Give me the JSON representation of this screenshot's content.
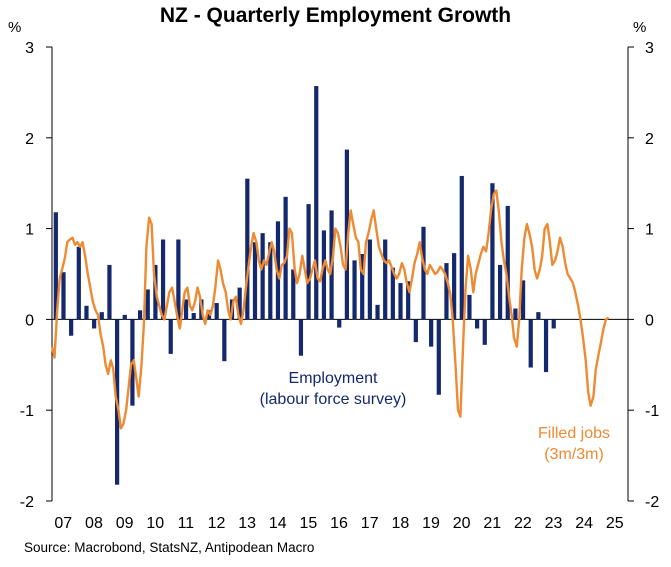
{
  "chart_data": {
    "type": "bar+line",
    "title": "NZ - Quarterly Employment Growth",
    "source": "Source: Macrobond, StatsNZ, Antipodean Macro",
    "y_unit_left": "%",
    "y_unit_right": "%",
    "ylim": [
      -2,
      3
    ],
    "y_ticks": [
      "3",
      "2",
      "1",
      "0",
      "-1",
      "-2"
    ],
    "x_tick_labels": [
      "07",
      "08",
      "09",
      "10",
      "11",
      "12",
      "13",
      "14",
      "15",
      "16",
      "17",
      "18",
      "19",
      "20",
      "21",
      "22",
      "23",
      "24",
      "25"
    ],
    "x_range_years": [
      2007,
      2025.8
    ],
    "grid": false,
    "colors": {
      "employment": "#14286e",
      "filled_jobs": "#ee8a32",
      "axis": "#000000",
      "text_navy": "#14286e",
      "text_orange": "#ee8a32"
    },
    "series": [
      {
        "name": "Employment",
        "type": "bar",
        "x_start": 2007.125,
        "step": 0.25,
        "values": [
          1.18,
          0.52,
          -0.18,
          0.8,
          0.15,
          -0.1,
          0.08,
          0.6,
          -1.82,
          0.05,
          -0.95,
          0.1,
          0.33,
          0.6,
          0.88,
          -0.38,
          0.88,
          0.22,
          0.07,
          0.22,
          0.1,
          0.18,
          -0.46,
          0.22,
          0.35,
          1.55,
          0.85,
          0.95,
          0.85,
          1.08,
          1.35,
          0.55,
          -0.4,
          1.27,
          2.57,
          0.98,
          1.2,
          -0.09,
          1.87,
          0.65,
          0.72,
          0.88,
          0.16,
          0.88,
          0.57,
          0.4,
          0.42,
          -0.25,
          1.02,
          -0.3,
          -0.83,
          0.62,
          0.73,
          1.58,
          0.27,
          -0.1,
          -0.28,
          1.5,
          0.6,
          1.25,
          0.12,
          0.43,
          -0.53,
          0.08,
          -0.58,
          -0.1
        ],
        "label_lines": [
          "Employment",
          "(labour force survey)"
        ]
      },
      {
        "name": "Filled jobs (3m/3m)",
        "type": "line",
        "points": [
          [
            2007.0,
            -0.3
          ],
          [
            2007.08,
            -0.42
          ],
          [
            2007.17,
            0.1
          ],
          [
            2007.25,
            0.45
          ],
          [
            2007.33,
            0.55
          ],
          [
            2007.42,
            0.68
          ],
          [
            2007.5,
            0.85
          ],
          [
            2007.58,
            0.88
          ],
          [
            2007.67,
            0.9
          ],
          [
            2007.75,
            0.82
          ],
          [
            2007.83,
            0.85
          ],
          [
            2007.92,
            0.8
          ],
          [
            2008.0,
            0.85
          ],
          [
            2008.08,
            0.7
          ],
          [
            2008.17,
            0.5
          ],
          [
            2008.25,
            0.35
          ],
          [
            2008.33,
            0.2
          ],
          [
            2008.42,
            0.1
          ],
          [
            2008.5,
            0.05
          ],
          [
            2008.58,
            -0.15
          ],
          [
            2008.67,
            -0.3
          ],
          [
            2008.75,
            -0.5
          ],
          [
            2008.83,
            -0.6
          ],
          [
            2008.92,
            -0.45
          ],
          [
            2009.0,
            -0.55
          ],
          [
            2009.08,
            -0.85
          ],
          [
            2009.17,
            -1.0
          ],
          [
            2009.25,
            -1.2
          ],
          [
            2009.33,
            -1.15
          ],
          [
            2009.42,
            -1.0
          ],
          [
            2009.5,
            -0.75
          ],
          [
            2009.58,
            -0.5
          ],
          [
            2009.67,
            -0.45
          ],
          [
            2009.75,
            -0.65
          ],
          [
            2009.83,
            -0.85
          ],
          [
            2009.92,
            -0.5
          ],
          [
            2010.0,
            -0.05
          ],
          [
            2010.08,
            0.8
          ],
          [
            2010.17,
            1.12
          ],
          [
            2010.25,
            1.05
          ],
          [
            2010.33,
            0.5
          ],
          [
            2010.42,
            0.25
          ],
          [
            2010.5,
            0.15
          ],
          [
            2010.58,
            0.05
          ],
          [
            2010.67,
            0.0
          ],
          [
            2010.75,
            0.15
          ],
          [
            2010.83,
            0.3
          ],
          [
            2010.92,
            0.35
          ],
          [
            2011.0,
            0.2
          ],
          [
            2011.08,
            0.05
          ],
          [
            2011.17,
            -0.1
          ],
          [
            2011.25,
            0.1
          ],
          [
            2011.33,
            0.3
          ],
          [
            2011.42,
            0.35
          ],
          [
            2011.5,
            0.15
          ],
          [
            2011.58,
            0.1
          ],
          [
            2011.67,
            0.2
          ],
          [
            2011.75,
            0.35
          ],
          [
            2011.83,
            0.25
          ],
          [
            2011.92,
            0.05
          ],
          [
            2012.0,
            -0.05
          ],
          [
            2012.08,
            0.1
          ],
          [
            2012.17,
            0.05
          ],
          [
            2012.25,
            0.15
          ],
          [
            2012.33,
            0.35
          ],
          [
            2012.42,
            0.65
          ],
          [
            2012.5,
            0.55
          ],
          [
            2012.58,
            0.4
          ],
          [
            2012.67,
            0.3
          ],
          [
            2012.75,
            0.1
          ],
          [
            2012.83,
            0.0
          ],
          [
            2012.92,
            0.2
          ],
          [
            2013.0,
            0.25
          ],
          [
            2013.08,
            0.05
          ],
          [
            2013.17,
            -0.05
          ],
          [
            2013.25,
            0.1
          ],
          [
            2013.33,
            0.35
          ],
          [
            2013.42,
            0.6
          ],
          [
            2013.5,
            0.8
          ],
          [
            2013.58,
            0.95
          ],
          [
            2013.67,
            0.85
          ],
          [
            2013.75,
            0.65
          ],
          [
            2013.83,
            0.55
          ],
          [
            2013.92,
            0.65
          ],
          [
            2014.0,
            0.6
          ],
          [
            2014.08,
            0.72
          ],
          [
            2014.17,
            0.85
          ],
          [
            2014.25,
            0.75
          ],
          [
            2014.33,
            0.55
          ],
          [
            2014.42,
            0.45
          ],
          [
            2014.5,
            0.6
          ],
          [
            2014.58,
            0.62
          ],
          [
            2014.67,
            0.7
          ],
          [
            2014.75,
            1.0
          ],
          [
            2014.83,
            0.95
          ],
          [
            2014.92,
            0.55
          ],
          [
            2015.0,
            0.4
          ],
          [
            2015.08,
            0.5
          ],
          [
            2015.17,
            0.7
          ],
          [
            2015.25,
            0.55
          ],
          [
            2015.33,
            0.4
          ],
          [
            2015.42,
            0.45
          ],
          [
            2015.5,
            0.55
          ],
          [
            2015.58,
            0.65
          ],
          [
            2015.67,
            0.45
          ],
          [
            2015.75,
            0.42
          ],
          [
            2015.83,
            0.55
          ],
          [
            2015.92,
            0.65
          ],
          [
            2016.0,
            0.55
          ],
          [
            2016.08,
            0.5
          ],
          [
            2016.17,
            0.7
          ],
          [
            2016.25,
            1.0
          ],
          [
            2016.33,
            0.95
          ],
          [
            2016.42,
            0.8
          ],
          [
            2016.5,
            0.6
          ],
          [
            2016.58,
            0.55
          ],
          [
            2016.67,
            0.95
          ],
          [
            2016.75,
            1.2
          ],
          [
            2016.83,
            1.05
          ],
          [
            2016.92,
            0.9
          ],
          [
            2017.0,
            0.85
          ],
          [
            2017.08,
            0.55
          ],
          [
            2017.17,
            0.5
          ],
          [
            2017.25,
            0.85
          ],
          [
            2017.33,
            0.95
          ],
          [
            2017.42,
            1.1
          ],
          [
            2017.5,
            1.2
          ],
          [
            2017.58,
            1.0
          ],
          [
            2017.67,
            0.8
          ],
          [
            2017.75,
            0.72
          ],
          [
            2017.83,
            0.65
          ],
          [
            2017.92,
            0.62
          ],
          [
            2018.0,
            0.65
          ],
          [
            2018.08,
            0.58
          ],
          [
            2018.17,
            0.5
          ],
          [
            2018.25,
            0.45
          ],
          [
            2018.33,
            0.5
          ],
          [
            2018.42,
            0.62
          ],
          [
            2018.5,
            0.55
          ],
          [
            2018.58,
            0.4
          ],
          [
            2018.67,
            0.3
          ],
          [
            2018.75,
            0.45
          ],
          [
            2018.83,
            0.62
          ],
          [
            2018.92,
            0.72
          ],
          [
            2019.0,
            0.85
          ],
          [
            2019.08,
            0.68
          ],
          [
            2019.17,
            0.55
          ],
          [
            2019.25,
            0.5
          ],
          [
            2019.33,
            0.6
          ],
          [
            2019.42,
            0.55
          ],
          [
            2019.5,
            0.5
          ],
          [
            2019.58,
            0.52
          ],
          [
            2019.67,
            0.58
          ],
          [
            2019.75,
            0.55
          ],
          [
            2019.83,
            0.5
          ],
          [
            2019.92,
            0.4
          ],
          [
            2020.0,
            0.28
          ],
          [
            2020.08,
            0.0
          ],
          [
            2020.17,
            -0.5
          ],
          [
            2020.25,
            -1.0
          ],
          [
            2020.33,
            -1.07
          ],
          [
            2020.42,
            -0.25
          ],
          [
            2020.5,
            0.35
          ],
          [
            2020.58,
            0.7
          ],
          [
            2020.67,
            0.55
          ],
          [
            2020.75,
            0.3
          ],
          [
            2020.83,
            0.5
          ],
          [
            2020.92,
            0.62
          ],
          [
            2021.0,
            0.72
          ],
          [
            2021.08,
            0.8
          ],
          [
            2021.17,
            0.75
          ],
          [
            2021.25,
            0.95
          ],
          [
            2021.33,
            1.2
          ],
          [
            2021.42,
            1.38
          ],
          [
            2021.5,
            1.42
          ],
          [
            2021.58,
            1.2
          ],
          [
            2021.67,
            0.85
          ],
          [
            2021.75,
            0.65
          ],
          [
            2021.83,
            0.5
          ],
          [
            2021.92,
            0.25
          ],
          [
            2022.0,
            0.05
          ],
          [
            2022.08,
            -0.2
          ],
          [
            2022.17,
            -0.3
          ],
          [
            2022.25,
            0.0
          ],
          [
            2022.33,
            0.55
          ],
          [
            2022.42,
            0.9
          ],
          [
            2022.5,
            1.05
          ],
          [
            2022.58,
            0.95
          ],
          [
            2022.67,
            0.8
          ],
          [
            2022.75,
            0.55
          ],
          [
            2022.83,
            0.45
          ],
          [
            2022.92,
            0.55
          ],
          [
            2023.0,
            0.7
          ],
          [
            2023.08,
            1.0
          ],
          [
            2023.17,
            1.05
          ],
          [
            2023.25,
            0.85
          ],
          [
            2023.33,
            0.6
          ],
          [
            2023.42,
            0.65
          ],
          [
            2023.5,
            0.75
          ],
          [
            2023.58,
            0.9
          ],
          [
            2023.67,
            0.8
          ],
          [
            2023.75,
            0.62
          ],
          [
            2023.83,
            0.5
          ],
          [
            2023.92,
            0.45
          ],
          [
            2024.0,
            0.4
          ],
          [
            2024.08,
            0.3
          ],
          [
            2024.17,
            0.15
          ],
          [
            2024.25,
            0.0
          ],
          [
            2024.33,
            -0.2
          ],
          [
            2024.42,
            -0.45
          ],
          [
            2024.5,
            -0.8
          ],
          [
            2024.58,
            -0.95
          ],
          [
            2024.67,
            -0.85
          ],
          [
            2024.75,
            -0.55
          ],
          [
            2024.83,
            -0.4
          ],
          [
            2024.92,
            -0.25
          ],
          [
            2025.0,
            -0.1
          ],
          [
            2025.08,
            0.0
          ],
          [
            2025.17,
            0.02
          ]
        ],
        "label_lines": [
          "Filled jobs",
          "(3m/3m)"
        ]
      }
    ]
  }
}
